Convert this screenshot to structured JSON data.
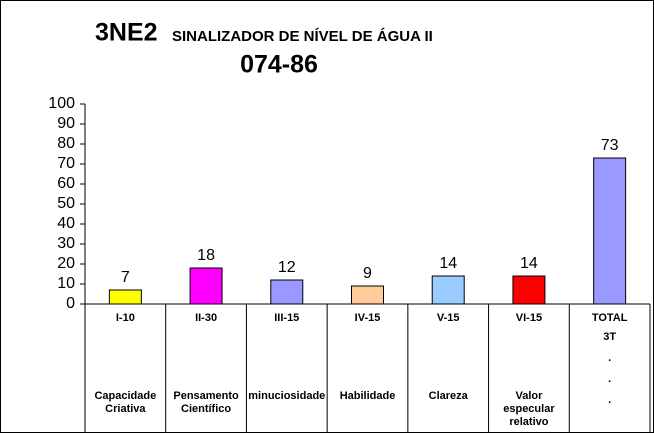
{
  "chart_data": {
    "type": "bar",
    "title": "3NE2",
    "subtitle": "SINALIZADOR DE NÍVEL DE ÁGUA II",
    "code": "074-86",
    "categories": [
      "I-10",
      "II-30",
      "III-15",
      "IV-15",
      "V-15",
      "VI-15",
      "TOTAL"
    ],
    "descriptions": [
      [
        "Capacidade",
        "Criativa"
      ],
      [
        "Pensamento",
        "Científico"
      ],
      [
        "minuciosidade"
      ],
      [
        "Habilidade"
      ],
      [
        "Clareza"
      ],
      [
        "Valor",
        "especular",
        "relativo"
      ],
      null
    ],
    "total_notes": [
      "3T",
      ".",
      ".",
      "."
    ],
    "values": [
      7,
      18,
      12,
      9,
      14,
      14,
      73
    ],
    "colors": [
      "#ffff00",
      "#ff00ff",
      "#9999ff",
      "#ffcc99",
      "#99ccff",
      "#ff0000",
      "#9999ff"
    ],
    "ylim": [
      0,
      100
    ],
    "yticks": [
      0,
      10,
      20,
      30,
      40,
      50,
      60,
      70,
      80,
      90,
      100
    ],
    "grid": false
  }
}
